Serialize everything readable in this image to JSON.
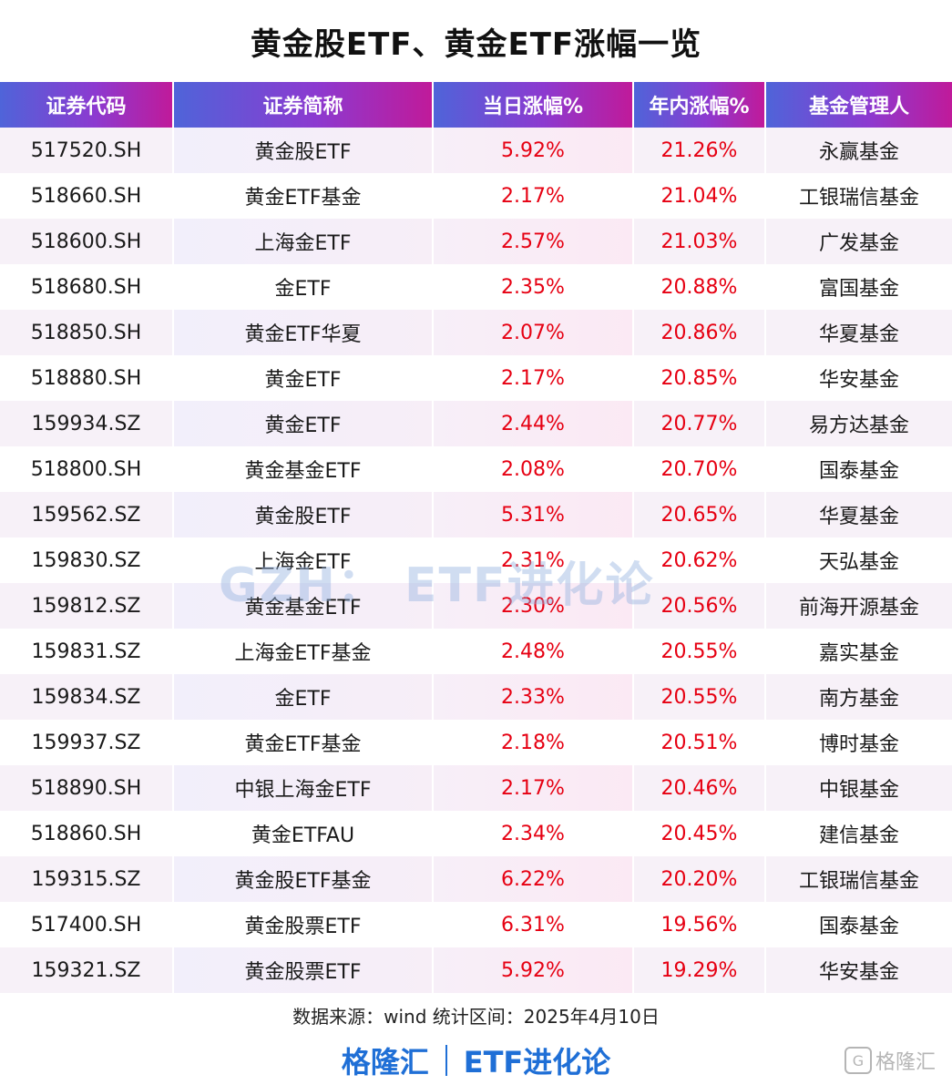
{
  "title": "黄金股ETF、黄金ETF涨幅一览",
  "table": {
    "headers": [
      "证券代码",
      "证券简称",
      "当日涨幅%",
      "年内涨幅%",
      "基金管理人"
    ],
    "rows": [
      {
        "code": "517520.SH",
        "name": "黄金股ETF",
        "day": "5.92%",
        "ytd": "21.26%",
        "manager": "永赢基金"
      },
      {
        "code": "518660.SH",
        "name": "黄金ETF基金",
        "day": "2.17%",
        "ytd": "21.04%",
        "manager": "工银瑞信基金"
      },
      {
        "code": "518600.SH",
        "name": "上海金ETF",
        "day": "2.57%",
        "ytd": "21.03%",
        "manager": "广发基金"
      },
      {
        "code": "518680.SH",
        "name": "金ETF",
        "day": "2.35%",
        "ytd": "20.88%",
        "manager": "富国基金"
      },
      {
        "code": "518850.SH",
        "name": "黄金ETF华夏",
        "day": "2.07%",
        "ytd": "20.86%",
        "manager": "华夏基金"
      },
      {
        "code": "518880.SH",
        "name": "黄金ETF",
        "day": "2.17%",
        "ytd": "20.85%",
        "manager": "华安基金"
      },
      {
        "code": "159934.SZ",
        "name": "黄金ETF",
        "day": "2.44%",
        "ytd": "20.77%",
        "manager": "易方达基金"
      },
      {
        "code": "518800.SH",
        "name": "黄金基金ETF",
        "day": "2.08%",
        "ytd": "20.70%",
        "manager": "国泰基金"
      },
      {
        "code": "159562.SZ",
        "name": "黄金股ETF",
        "day": "5.31%",
        "ytd": "20.65%",
        "manager": "华夏基金"
      },
      {
        "code": "159830.SZ",
        "name": "上海金ETF",
        "day": "2.31%",
        "ytd": "20.62%",
        "manager": "天弘基金"
      },
      {
        "code": "159812.SZ",
        "name": "黄金基金ETF",
        "day": "2.30%",
        "ytd": "20.56%",
        "manager": "前海开源基金"
      },
      {
        "code": "159831.SZ",
        "name": "上海金ETF基金",
        "day": "2.48%",
        "ytd": "20.55%",
        "manager": "嘉实基金"
      },
      {
        "code": "159834.SZ",
        "name": "金ETF",
        "day": "2.33%",
        "ytd": "20.55%",
        "manager": "南方基金"
      },
      {
        "code": "159937.SZ",
        "name": "黄金ETF基金",
        "day": "2.18%",
        "ytd": "20.51%",
        "manager": "博时基金"
      },
      {
        "code": "518890.SH",
        "name": "中银上海金ETF",
        "day": "2.17%",
        "ytd": "20.46%",
        "manager": "中银基金"
      },
      {
        "code": "518860.SH",
        "name": "黄金ETFAU",
        "day": "2.34%",
        "ytd": "20.45%",
        "manager": "建信基金"
      },
      {
        "code": "159315.SZ",
        "name": "黄金股ETF基金",
        "day": "6.22%",
        "ytd": "20.20%",
        "manager": "工银瑞信基金"
      },
      {
        "code": "517400.SH",
        "name": "黄金股票ETF",
        "day": "6.31%",
        "ytd": "19.56%",
        "manager": "国泰基金"
      },
      {
        "code": "159321.SZ",
        "name": "黄金股票ETF",
        "day": "5.92%",
        "ytd": "19.29%",
        "manager": "华安基金"
      }
    ]
  },
  "watermark": "GZH： ETF进化论",
  "source": "数据来源：wind   统计区间：2025年4月10日",
  "footer": {
    "brand_left": "格隆汇",
    "brand_right": "ETF进化论"
  },
  "corner_logo": "格隆汇",
  "colors": {
    "accent_red": "#e60012",
    "brand_blue": "#1f6fd6",
    "header_gradient_start": "#4f64d9",
    "header_gradient_end": "#c01a9a"
  }
}
